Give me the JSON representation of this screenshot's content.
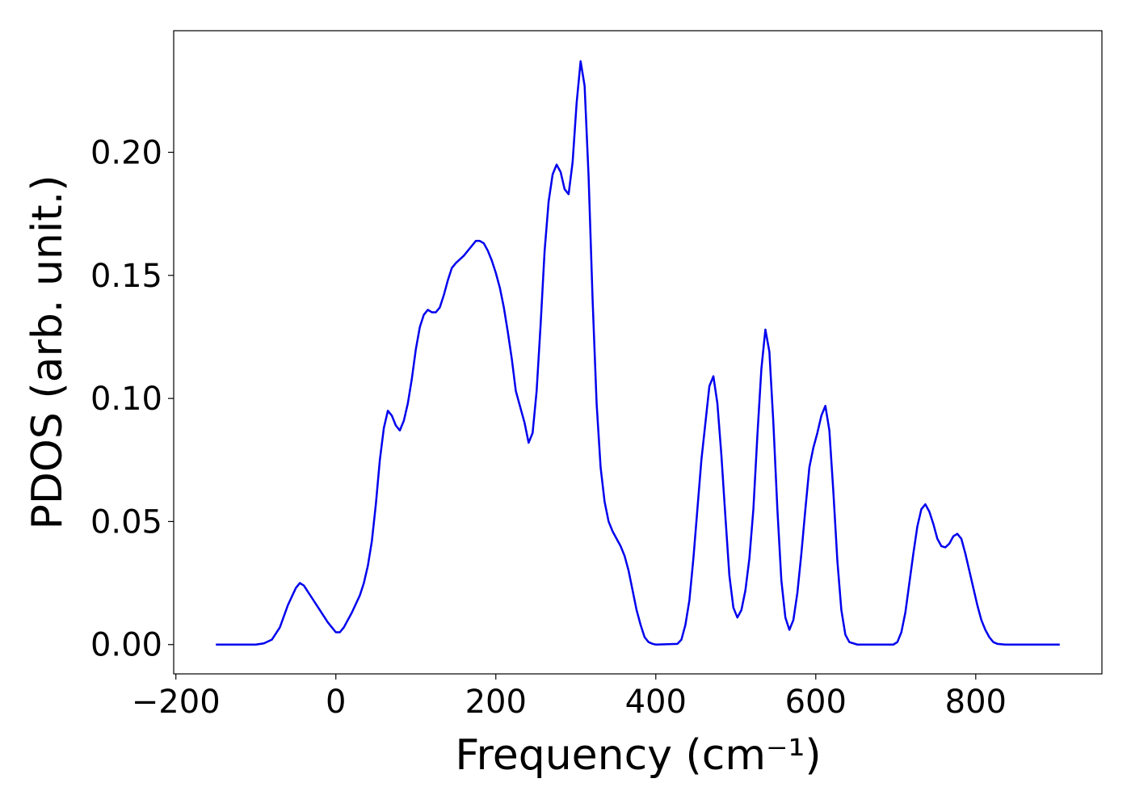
{
  "chart_data": {
    "type": "line",
    "xlabel": "Frequency (cm⁻¹)",
    "ylabel": "PDOS (arb. unit.)",
    "x": [
      -150,
      -100,
      -90,
      -80,
      -70,
      -60,
      -50,
      -45,
      -40,
      -30,
      -20,
      -10,
      -5,
      0,
      5,
      10,
      20,
      30,
      35,
      40,
      45,
      50,
      55,
      60,
      65,
      70,
      75,
      80,
      85,
      90,
      95,
      100,
      105,
      110,
      115,
      120,
      125,
      130,
      135,
      140,
      145,
      150,
      160,
      170,
      175,
      180,
      185,
      190,
      195,
      200,
      205,
      210,
      215,
      220,
      225,
      236,
      241,
      246,
      251,
      256,
      261,
      266,
      271,
      276,
      281,
      286,
      291,
      296,
      301,
      306,
      311,
      316,
      321,
      326,
      331,
      336,
      341,
      346,
      351,
      356,
      361,
      366,
      371,
      376,
      381,
      386,
      391,
      396,
      400,
      427,
      432,
      437,
      442,
      447,
      452,
      457,
      462,
      467,
      472,
      477,
      482,
      487,
      492,
      497,
      502,
      507,
      512,
      517,
      522,
      527,
      532,
      537,
      542,
      547,
      552,
      557,
      562,
      567,
      572,
      577,
      582,
      587,
      592,
      597,
      602,
      607,
      612,
      617,
      622,
      627,
      632,
      637,
      642,
      652,
      697,
      702,
      707,
      712,
      717,
      722,
      727,
      732,
      737,
      742,
      747,
      752,
      757,
      762,
      767,
      772,
      777,
      782,
      787,
      792,
      797,
      802,
      807,
      812,
      817,
      822,
      827,
      837,
      905
    ],
    "series": [
      {
        "color": "#0000ee",
        "values": [
          0,
          0,
          0.0005,
          0.002,
          0.007,
          0.016,
          0.023,
          0.025,
          0.024,
          0.019,
          0.014,
          0.009,
          0.007,
          0.005,
          0.005,
          0.007,
          0.013,
          0.02,
          0.025,
          0.032,
          0.042,
          0.057,
          0.075,
          0.088,
          0.095,
          0.093,
          0.089,
          0.087,
          0.091,
          0.098,
          0.108,
          0.12,
          0.129,
          0.134,
          0.136,
          0.135,
          0.135,
          0.137,
          0.142,
          0.148,
          0.153,
          0.155,
          0.158,
          0.162,
          0.164,
          0.164,
          0.163,
          0.16,
          0.156,
          0.151,
          0.145,
          0.137,
          0.127,
          0.116,
          0.103,
          0.09,
          0.082,
          0.086,
          0.103,
          0.13,
          0.16,
          0.18,
          0.191,
          0.195,
          0.192,
          0.185,
          0.183,
          0.196,
          0.22,
          0.237,
          0.227,
          0.19,
          0.14,
          0.098,
          0.072,
          0.058,
          0.05,
          0.046,
          0.043,
          0.04,
          0.036,
          0.03,
          0.022,
          0.014,
          0.008,
          0.003,
          0.001,
          0.0003,
          0,
          0.0003,
          0.002,
          0.008,
          0.018,
          0.035,
          0.055,
          0.075,
          0.09,
          0.105,
          0.109,
          0.098,
          0.077,
          0.052,
          0.028,
          0.015,
          0.011,
          0.014,
          0.022,
          0.035,
          0.055,
          0.085,
          0.112,
          0.128,
          0.119,
          0.09,
          0.055,
          0.026,
          0.011,
          0.006,
          0.01,
          0.021,
          0.037,
          0.055,
          0.072,
          0.08,
          0.086,
          0.093,
          0.097,
          0.087,
          0.062,
          0.034,
          0.014,
          0.004,
          0.001,
          0,
          0,
          0.001,
          0.005,
          0.013,
          0.025,
          0.037,
          0.048,
          0.055,
          0.057,
          0.054,
          0.049,
          0.043,
          0.04,
          0.0395,
          0.041,
          0.044,
          0.045,
          0.043,
          0.037,
          0.03,
          0.023,
          0.016,
          0.01,
          0.006,
          0.003,
          0.001,
          0.0003,
          0,
          0
        ]
      }
    ],
    "xlim": [
      -202.75,
      957.75
    ],
    "ylim": [
      -0.0119,
      0.2494
    ],
    "xticks": [
      {
        "value": -200,
        "label": "−200"
      },
      0,
      200,
      400,
      600,
      800
    ],
    "yticks": [
      {
        "value": 0,
        "label": "0.00"
      },
      {
        "value": 0.05,
        "label": "0.05"
      },
      {
        "value": 0.1,
        "label": "0.10"
      },
      {
        "value": 0.15,
        "label": "0.15"
      },
      {
        "value": 0.2,
        "label": "0.20"
      }
    ]
  }
}
